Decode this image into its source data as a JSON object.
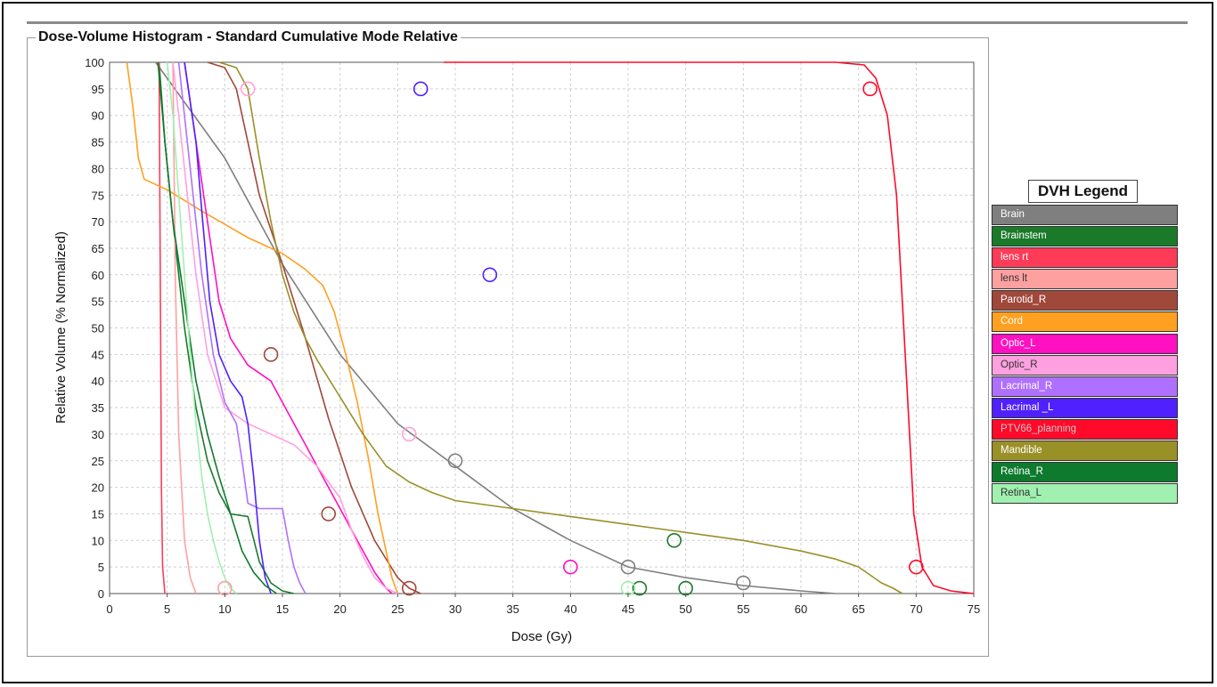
{
  "chart_data": {
    "type": "line",
    "title": "Dose-Volume Histogram - Standard Cumulative Mode Relative",
    "xlabel": "Dose (Gy)",
    "ylabel": "Relative Volume (% Normalized)",
    "xlim": [
      0,
      75
    ],
    "ylim": [
      0,
      100
    ],
    "x_ticks": [
      0,
      5,
      10,
      15,
      20,
      25,
      30,
      35,
      40,
      45,
      50,
      55,
      60,
      65,
      70,
      75
    ],
    "y_ticks": [
      0,
      5,
      10,
      15,
      20,
      25,
      30,
      35,
      40,
      45,
      50,
      55,
      60,
      65,
      70,
      75,
      80,
      85,
      90,
      95,
      100
    ],
    "grid": true,
    "legend_title": "DVH Legend",
    "legend_position": "right",
    "series": [
      {
        "name": "Brain",
        "color": "#7f7f7f",
        "text_color": "#ffffff",
        "points": [
          [
            4,
            100
          ],
          [
            10,
            82
          ],
          [
            15,
            62
          ],
          [
            20,
            45
          ],
          [
            25,
            32
          ],
          [
            30,
            24
          ],
          [
            35,
            16
          ],
          [
            40,
            10
          ],
          [
            45,
            5
          ],
          [
            50,
            3
          ],
          [
            55,
            1.5
          ],
          [
            60,
            0.5
          ],
          [
            63,
            0
          ]
        ],
        "markers": [
          [
            30,
            25
          ],
          [
            45,
            5
          ],
          [
            55,
            2
          ]
        ]
      },
      {
        "name": "Brainstem",
        "color": "#1a7a2a",
        "text_color": "#ffffff",
        "points": [
          [
            4.3,
            100
          ],
          [
            4.8,
            85
          ],
          [
            5.5,
            70
          ],
          [
            6.5,
            50
          ],
          [
            7.5,
            35
          ],
          [
            8.5,
            25
          ],
          [
            9.5,
            19
          ],
          [
            10.5,
            15
          ],
          [
            12,
            14.5
          ],
          [
            13,
            6
          ],
          [
            14,
            2
          ],
          [
            15,
            0.5
          ],
          [
            16,
            0
          ]
        ],
        "markers": [
          [
            46,
            1
          ],
          [
            50,
            1
          ],
          [
            49,
            10
          ]
        ]
      },
      {
        "name": "lens rt",
        "color": "#ff3b58",
        "text_color": "#ffffff",
        "points": [
          [
            4.3,
            100
          ],
          [
            4.4,
            60
          ],
          [
            4.5,
            20
          ],
          [
            4.6,
            5
          ],
          [
            4.8,
            0
          ]
        ],
        "markers": []
      },
      {
        "name": "lens lt",
        "color": "#ffa0a0",
        "text_color": "#333333",
        "points": [
          [
            5.5,
            100
          ],
          [
            5.7,
            60
          ],
          [
            6,
            30
          ],
          [
            6.5,
            10
          ],
          [
            7,
            3
          ],
          [
            7.5,
            0
          ]
        ],
        "markers": [
          [
            10,
            1
          ]
        ]
      },
      {
        "name": "Parotid_R",
        "color": "#a0483a",
        "text_color": "#ffffff",
        "points": [
          [
            8.5,
            100
          ],
          [
            10,
            99
          ],
          [
            11,
            95
          ],
          [
            12,
            85
          ],
          [
            13,
            75
          ],
          [
            15,
            62
          ],
          [
            17,
            48
          ],
          [
            19,
            33
          ],
          [
            21,
            20
          ],
          [
            23,
            10
          ],
          [
            25,
            3
          ],
          [
            26,
            1
          ],
          [
            27,
            0
          ]
        ],
        "markers": [
          [
            14,
            45
          ],
          [
            19,
            15
          ],
          [
            26,
            1
          ]
        ]
      },
      {
        "name": "Cord",
        "color": "#ffa020",
        "text_color": "#ffffff",
        "points": [
          [
            1.5,
            100
          ],
          [
            2,
            92
          ],
          [
            2.5,
            82
          ],
          [
            3,
            78
          ],
          [
            5,
            76
          ],
          [
            8,
            72
          ],
          [
            12,
            67
          ],
          [
            15,
            64
          ],
          [
            17,
            61
          ],
          [
            18.5,
            58
          ],
          [
            19.5,
            53
          ],
          [
            20.5,
            45
          ],
          [
            21.5,
            36
          ],
          [
            22.5,
            25
          ],
          [
            23.3,
            15
          ],
          [
            24,
            8
          ],
          [
            24.5,
            3
          ],
          [
            25,
            0
          ]
        ],
        "markers": []
      },
      {
        "name": "Optic_L",
        "color": "#ff10c0",
        "text_color": "#ffffff",
        "points": [
          [
            6.5,
            100
          ],
          [
            7.5,
            85
          ],
          [
            8.5,
            70
          ],
          [
            9.5,
            55
          ],
          [
            10.5,
            48
          ],
          [
            12,
            43
          ],
          [
            14,
            40
          ],
          [
            15,
            36
          ],
          [
            16,
            32
          ],
          [
            17,
            28
          ],
          [
            18,
            24
          ],
          [
            19,
            20
          ],
          [
            20,
            16
          ],
          [
            21,
            12
          ],
          [
            22,
            8
          ],
          [
            23,
            4
          ],
          [
            24,
            1
          ],
          [
            24.5,
            0
          ]
        ],
        "markers": [
          [
            40,
            5
          ]
        ]
      },
      {
        "name": "Optic_R",
        "color": "#ffa0e0",
        "text_color": "#333333",
        "points": [
          [
            5.5,
            100
          ],
          [
            6.5,
            80
          ],
          [
            7.5,
            60
          ],
          [
            8.5,
            45
          ],
          [
            10,
            35
          ],
          [
            12,
            32
          ],
          [
            14,
            30
          ],
          [
            16,
            28
          ],
          [
            18,
            24
          ],
          [
            20,
            18
          ],
          [
            21,
            12
          ],
          [
            22,
            7
          ],
          [
            23,
            3
          ],
          [
            24,
            1
          ],
          [
            25,
            0
          ]
        ],
        "markers": [
          [
            12,
            95
          ],
          [
            26,
            30
          ]
        ]
      },
      {
        "name": "Lacrimal_R",
        "color": "#b070ff",
        "text_color": "#ffffff",
        "points": [
          [
            6,
            100
          ],
          [
            7,
            80
          ],
          [
            8,
            60
          ],
          [
            9,
            45
          ],
          [
            10,
            36
          ],
          [
            11,
            32
          ],
          [
            11.5,
            25
          ],
          [
            12,
            17
          ],
          [
            13,
            16
          ],
          [
            15,
            16
          ],
          [
            15.5,
            10
          ],
          [
            16,
            5
          ],
          [
            16.5,
            2
          ],
          [
            17,
            0
          ]
        ],
        "markers": []
      },
      {
        "name": "Lacrimal _L",
        "color": "#5020ff",
        "text_color": "#ffffff",
        "points": [
          [
            6.5,
            100
          ],
          [
            7.5,
            85
          ],
          [
            8,
            72
          ],
          [
            8.7,
            55
          ],
          [
            9.5,
            45
          ],
          [
            10.5,
            40
          ],
          [
            11.5,
            37
          ],
          [
            12,
            32
          ],
          [
            12.5,
            22
          ],
          [
            13,
            10
          ],
          [
            13.5,
            3
          ],
          [
            14,
            0
          ]
        ],
        "markers": [
          [
            27,
            95
          ],
          [
            33,
            60
          ]
        ]
      },
      {
        "name": "PTV66_planning",
        "color": "#ff0a2a",
        "text_color": "#c8c8c8",
        "points": [
          [
            29,
            100
          ],
          [
            63,
            100
          ],
          [
            65.5,
            99.5
          ],
          [
            66.5,
            97
          ],
          [
            67.5,
            90
          ],
          [
            68.3,
            75
          ],
          [
            68.8,
            55
          ],
          [
            69.3,
            35
          ],
          [
            69.8,
            15
          ],
          [
            70.5,
            5
          ],
          [
            71.5,
            1.5
          ],
          [
            73,
            0.5
          ],
          [
            75,
            0
          ]
        ],
        "markers": [
          [
            66,
            95
          ],
          [
            70,
            5
          ]
        ]
      },
      {
        "name": "Mandible",
        "color": "#9a9028",
        "text_color": "#ffffff",
        "points": [
          [
            9.5,
            100
          ],
          [
            11,
            99
          ],
          [
            12,
            95
          ],
          [
            13,
            82
          ],
          [
            14,
            70
          ],
          [
            15,
            60
          ],
          [
            16,
            53
          ],
          [
            17,
            48
          ],
          [
            18,
            44
          ],
          [
            20,
            37
          ],
          [
            22,
            30
          ],
          [
            24,
            24
          ],
          [
            26,
            21
          ],
          [
            28,
            19
          ],
          [
            30,
            17.5
          ],
          [
            35,
            16
          ],
          [
            40,
            14.5
          ],
          [
            45,
            13
          ],
          [
            50,
            11.5
          ],
          [
            55,
            10
          ],
          [
            60,
            8
          ],
          [
            63,
            6.5
          ],
          [
            65,
            5
          ],
          [
            66,
            3.5
          ],
          [
            67,
            2
          ],
          [
            68,
            1
          ],
          [
            68.8,
            0
          ]
        ],
        "markers": []
      },
      {
        "name": "Retina_R",
        "color": "#0e7a2e",
        "text_color": "#ffffff",
        "points": [
          [
            4.2,
            100
          ],
          [
            4.8,
            85
          ],
          [
            5.5,
            70
          ],
          [
            6.5,
            55
          ],
          [
            7.5,
            40
          ],
          [
            8.5,
            30
          ],
          [
            9.5,
            22
          ],
          [
            10.5,
            15
          ],
          [
            11.5,
            8
          ],
          [
            12.5,
            4
          ],
          [
            13.5,
            1.5
          ],
          [
            14.5,
            0
          ]
        ],
        "markers": []
      },
      {
        "name": "Retina_L",
        "color": "#a0f0b0",
        "text_color": "#333333",
        "points": [
          [
            5,
            100
          ],
          [
            5.5,
            90
          ],
          [
            6,
            75
          ],
          [
            6.5,
            60
          ],
          [
            7,
            45
          ],
          [
            7.5,
            32
          ],
          [
            8,
            22
          ],
          [
            8.5,
            15
          ],
          [
            9,
            10
          ],
          [
            9.5,
            6
          ],
          [
            10,
            3
          ],
          [
            10.5,
            1
          ],
          [
            11,
            0
          ]
        ],
        "markers": [
          [
            45,
            1
          ]
        ]
      }
    ]
  }
}
